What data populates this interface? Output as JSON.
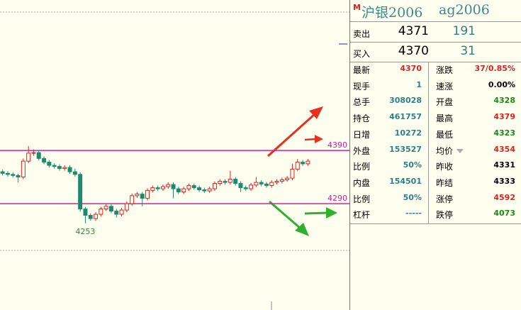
{
  "chart_data": {
    "type": "candlestick",
    "ylim": [
      4090,
      4673
    ],
    "ohlc": [
      [
        4350,
        4354,
        4343,
        4347
      ],
      [
        4347,
        4351,
        4341,
        4345
      ],
      [
        4345,
        4349,
        4339,
        4343
      ],
      [
        4343,
        4346,
        4330,
        4340
      ],
      [
        4340,
        4375,
        4336,
        4370
      ],
      [
        4370,
        4398,
        4366,
        4385
      ],
      [
        4385,
        4392,
        4380,
        4386
      ],
      [
        4386,
        4390,
        4371,
        4375
      ],
      [
        4375,
        4379,
        4364,
        4368
      ],
      [
        4368,
        4372,
        4358,
        4362
      ],
      [
        4362,
        4366,
        4356,
        4360
      ],
      [
        4360,
        4364,
        4352,
        4356
      ],
      [
        4356,
        4362,
        4352,
        4358
      ],
      [
        4358,
        4362,
        4346,
        4350
      ],
      [
        4350,
        4356,
        4341,
        4345
      ],
      [
        4345,
        4349,
        4275,
        4280
      ],
      [
        4280,
        4284,
        4253,
        4268
      ],
      [
        4268,
        4272,
        4258,
        4262
      ],
      [
        4262,
        4274,
        4258,
        4270
      ],
      [
        4270,
        4284,
        4266,
        4280
      ],
      [
        4280,
        4289,
        4276,
        4285
      ],
      [
        4285,
        4289,
        4272,
        4276
      ],
      [
        4276,
        4280,
        4264,
        4270
      ],
      [
        4270,
        4282,
        4266,
        4278
      ],
      [
        4278,
        4294,
        4274,
        4290
      ],
      [
        4290,
        4309,
        4286,
        4305
      ],
      [
        4305,
        4312,
        4301,
        4308
      ],
      [
        4308,
        4312,
        4285,
        4300
      ],
      [
        4300,
        4319,
        4296,
        4315
      ],
      [
        4315,
        4324,
        4311,
        4320
      ],
      [
        4320,
        4324,
        4314,
        4318
      ],
      [
        4318,
        4326,
        4314,
        4322
      ],
      [
        4322,
        4330,
        4318,
        4326
      ],
      [
        4326,
        4330,
        4300,
        4318
      ],
      [
        4318,
        4322,
        4308,
        4312
      ],
      [
        4312,
        4322,
        4308,
        4318
      ],
      [
        4318,
        4328,
        4314,
        4324
      ],
      [
        4324,
        4328,
        4316,
        4320
      ],
      [
        4320,
        4324,
        4312,
        4316
      ],
      [
        4316,
        4320,
        4310,
        4314
      ],
      [
        4314,
        4322,
        4310,
        4318
      ],
      [
        4318,
        4332,
        4314,
        4328
      ],
      [
        4328,
        4336,
        4324,
        4332
      ],
      [
        4332,
        4336,
        4326,
        4330
      ],
      [
        4330,
        4352,
        4326,
        4336
      ],
      [
        4336,
        4340,
        4324,
        4328
      ],
      [
        4328,
        4332,
        4312,
        4320
      ],
      [
        4320,
        4324,
        4314,
        4318
      ],
      [
        4318,
        4329,
        4314,
        4325
      ],
      [
        4325,
        4340,
        4321,
        4330
      ],
      [
        4330,
        4334,
        4323,
        4327
      ],
      [
        4327,
        4331,
        4320,
        4324
      ],
      [
        4324,
        4334,
        4320,
        4330
      ],
      [
        4330,
        4336,
        4326,
        4332
      ],
      [
        4332,
        4339,
        4328,
        4335
      ],
      [
        4335,
        4342,
        4331,
        4338
      ],
      [
        4338,
        4365,
        4334,
        4355
      ],
      [
        4355,
        4374,
        4351,
        4368
      ],
      [
        4368,
        4372,
        4361,
        4365
      ],
      [
        4365,
        4374,
        4361,
        4370
      ]
    ],
    "up_color": "#e02020",
    "down_color": "#1d8a6e",
    "hlines": [
      4390,
      4290
    ],
    "hline_color": "#d020a0",
    "low_label": 4253,
    "low_label_color": "#2a8a2a"
  },
  "quote": {
    "badge": "M",
    "name": "沪银2006",
    "code": "ag2006",
    "ask": {
      "label": "卖出",
      "price": "4371",
      "volume": "191"
    },
    "bid": {
      "label": "买入",
      "price": "4370",
      "volume": "31"
    },
    "left": [
      {
        "label": "最新",
        "value": "4370",
        "color": "#e02020"
      },
      {
        "label": "现手",
        "value": "1",
        "color": "#2a7f8a"
      },
      {
        "label": "总手",
        "value": "308028",
        "color": "#2a7f8a"
      },
      {
        "label": "持仓",
        "value": "461757",
        "color": "#2a7f8a"
      },
      {
        "label": "日增",
        "value": "10272",
        "color": "#2a7f8a"
      },
      {
        "label": "外盘",
        "value": "153527",
        "color": "#2a7f8a"
      },
      {
        "label": "比例",
        "value": "50%",
        "color": "#2a7f8a"
      },
      {
        "label": "内盘",
        "value": "154501",
        "color": "#2a7f8a"
      },
      {
        "label": "比例",
        "value": "50%",
        "color": "#2a7f8a"
      },
      {
        "label": "杠杆",
        "value": "-----",
        "color": "#2a7f8a"
      }
    ],
    "right": [
      {
        "label": "涨跌",
        "value": "37/0.85%",
        "color": "#e02020"
      },
      {
        "label": "速涨",
        "value": "0.00%",
        "color": "#000000"
      },
      {
        "label": "开盘",
        "value": "4328",
        "color": "#1a8a1a"
      },
      {
        "label": "最高",
        "value": "4379",
        "color": "#e02020"
      },
      {
        "label": "最低",
        "value": "4323",
        "color": "#1a8a1a"
      },
      {
        "label": "均价",
        "value": "4354",
        "color": "#e02020"
      },
      {
        "label": "昨收",
        "value": "4331",
        "color": "#000000"
      },
      {
        "label": "昨结",
        "value": "4333",
        "color": "#000000"
      },
      {
        "label": "涨停",
        "value": "4592",
        "color": "#e02020"
      },
      {
        "label": "跌停",
        "value": "4073",
        "color": "#1a8a1a"
      }
    ]
  }
}
